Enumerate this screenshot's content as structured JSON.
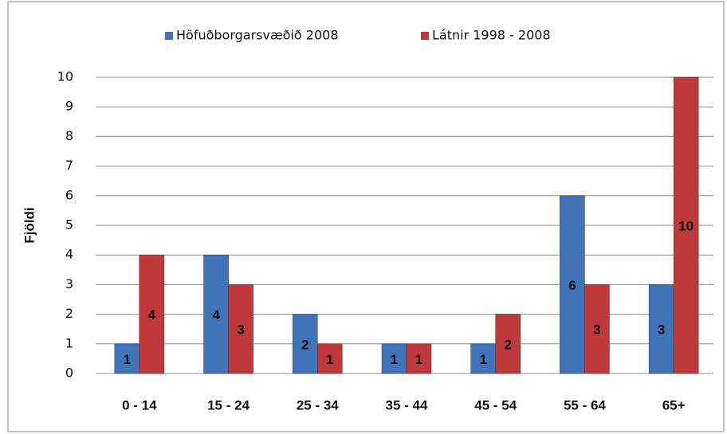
{
  "chart_data": {
    "type": "bar",
    "y_label": "Fjöldi",
    "categories": [
      "0 - 14",
      "15 - 24",
      "25 - 34",
      "35 - 44",
      "45 - 54",
      "55 - 64",
      "65+"
    ],
    "series": [
      {
        "name": "Höfuðborgarsvæðið 2008",
        "color": "#3f74b8",
        "values": [
          1,
          4,
          2,
          1,
          1,
          6,
          3
        ]
      },
      {
        "name": "Látnir 1998 - 2008",
        "color": "#c0393a",
        "values": [
          4,
          3,
          1,
          1,
          2,
          3,
          10
        ]
      }
    ],
    "ylim": [
      0,
      10
    ],
    "yticks": [
      0,
      1,
      2,
      3,
      4,
      5,
      6,
      7,
      8,
      9,
      10
    ],
    "grid": true,
    "legend": "top"
  }
}
